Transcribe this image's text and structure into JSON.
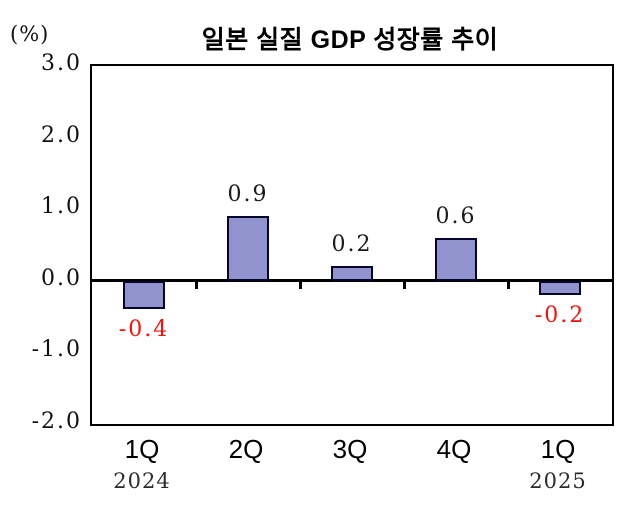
{
  "header": {
    "title": "일본 실질 GDP 성장률 추이",
    "unit_label": "(%)"
  },
  "chart_data": {
    "type": "bar",
    "title": "일본 실질 GDP 성장률 추이",
    "ylabel": "(%)",
    "categories": [
      "1Q",
      "2Q",
      "3Q",
      "4Q",
      "1Q"
    ],
    "values": [
      -0.4,
      0.9,
      0.2,
      0.6,
      -0.2
    ],
    "value_labels": [
      "-0.4",
      "0.9",
      "0.2",
      "0.6",
      "-0.2"
    ],
    "year_labels": [
      {
        "index": 0,
        "label": "2024"
      },
      {
        "index": 4,
        "label": "2025"
      }
    ],
    "ylim": [
      -2.0,
      3.0
    ],
    "yticks": [
      {
        "value": 3.0,
        "label": "3.0"
      },
      {
        "value": 2.0,
        "label": "2.0"
      },
      {
        "value": 1.0,
        "label": "1.0"
      },
      {
        "value": 0.0,
        "label": "0.0"
      },
      {
        "value": -1.0,
        "label": "-1.0"
      },
      {
        "value": -2.0,
        "label": "-2.0"
      }
    ],
    "grid": "off",
    "legend": "none",
    "bar_color": "#9193ce",
    "bar_border_color": "#06062a",
    "positive_label_color": "#1c1c1c",
    "negative_label_color": "#fb0f0c"
  }
}
